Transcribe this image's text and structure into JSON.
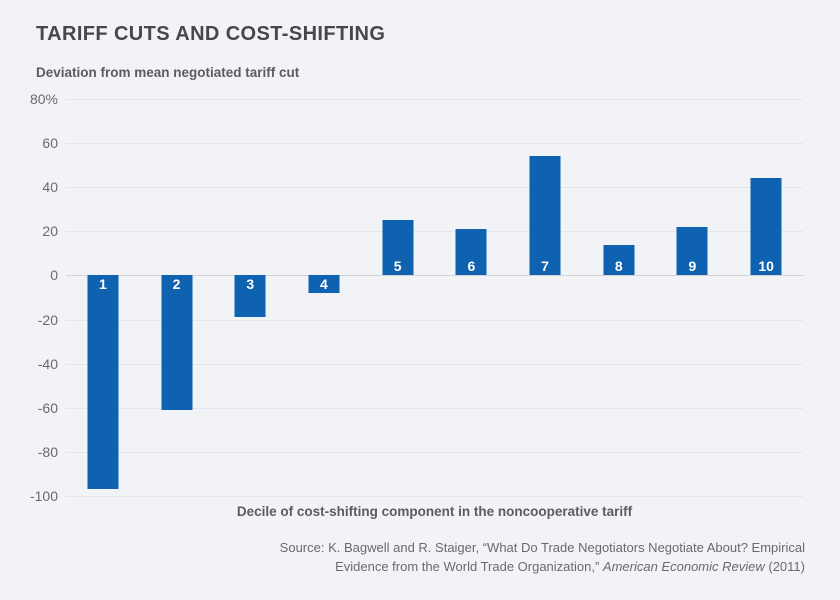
{
  "page": {
    "background": "#f2f3f7"
  },
  "header": {
    "title": "TARIFF CUTS AND COST-SHIFTING",
    "subtitle": "Deviation from mean negotiated tariff cut"
  },
  "chart_data": {
    "type": "bar",
    "title": "TARIFF CUTS AND COST-SHIFTING",
    "subtitle": "Deviation from mean negotiated tariff cut",
    "categories": [
      "1",
      "2",
      "3",
      "4",
      "5",
      "6",
      "7",
      "8",
      "9",
      "10"
    ],
    "values": [
      -97,
      -61,
      -19,
      -8,
      25,
      21,
      54,
      14,
      22,
      44
    ],
    "xlabel": "Decile of cost-shifting component in the noncooperative tariff",
    "ylabel": "Deviation from mean negotiated tariff cut",
    "ylim": [
      -100,
      80
    ],
    "y_ticks": [
      {
        "value": 80,
        "label": "80%"
      },
      {
        "value": 60,
        "label": "60"
      },
      {
        "value": 40,
        "label": "40"
      },
      {
        "value": 20,
        "label": "20"
      },
      {
        "value": 0,
        "label": "0"
      },
      {
        "value": -20,
        "label": "-20"
      },
      {
        "value": -40,
        "label": "-40"
      },
      {
        "value": -60,
        "label": "-60"
      },
      {
        "value": -80,
        "label": "-80"
      },
      {
        "value": -100,
        "label": "-100"
      }
    ],
    "grid": true,
    "legend_position": "none",
    "bar_color": "#0e62b0",
    "bar_label_color": "#ffffff"
  },
  "footer": {
    "xlabel": "Decile of cost-shifting component in the noncooperative tariff",
    "source_line1": "Source: K. Bagwell and R. Staiger, “What Do Trade Negotiators Negotiate About? Empirical",
    "source_line2_prefix": "Evidence from the World Trade Organization,”  ",
    "source_line2_italic": "American Economic Review",
    "source_line2_suffix": " (2011)"
  }
}
